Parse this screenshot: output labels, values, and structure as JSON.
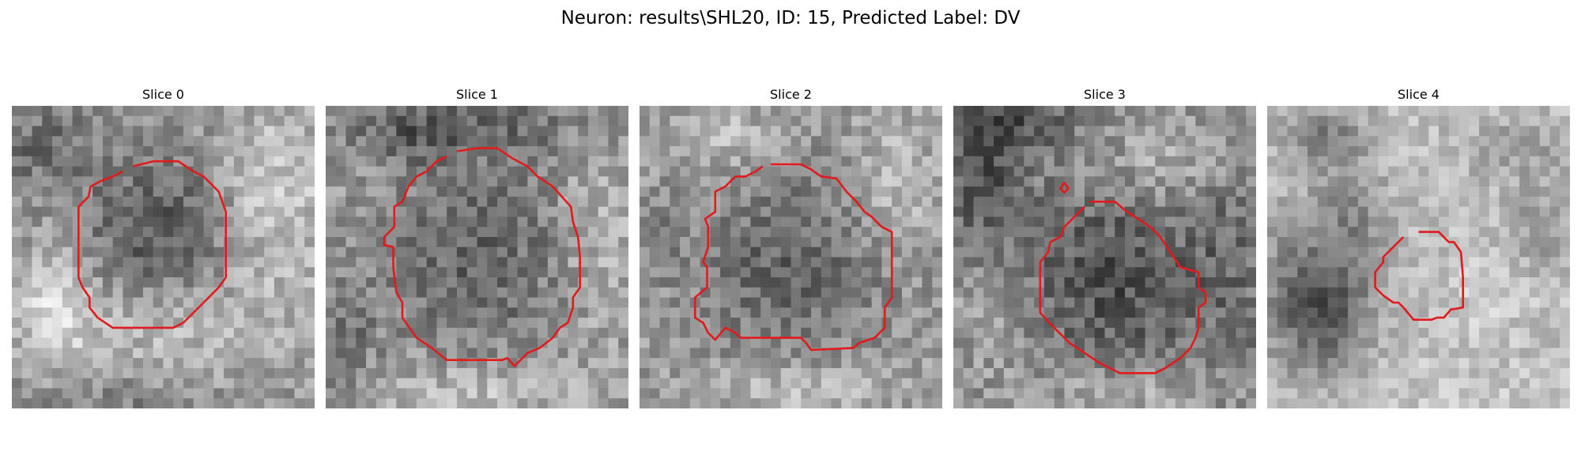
{
  "figure": {
    "title": "Neuron: results\\SHL20, ID: 15, Predicted Label: DV"
  },
  "panels": [
    {
      "title": "Slice 0"
    },
    {
      "title": "Slice 1"
    },
    {
      "title": "Slice 2"
    },
    {
      "title": "Slice 3"
    },
    {
      "title": "Slice 4"
    }
  ],
  "colors": {
    "contour": "#e31a1c",
    "background": "#ffffff",
    "image_palette": "grayscale"
  }
}
